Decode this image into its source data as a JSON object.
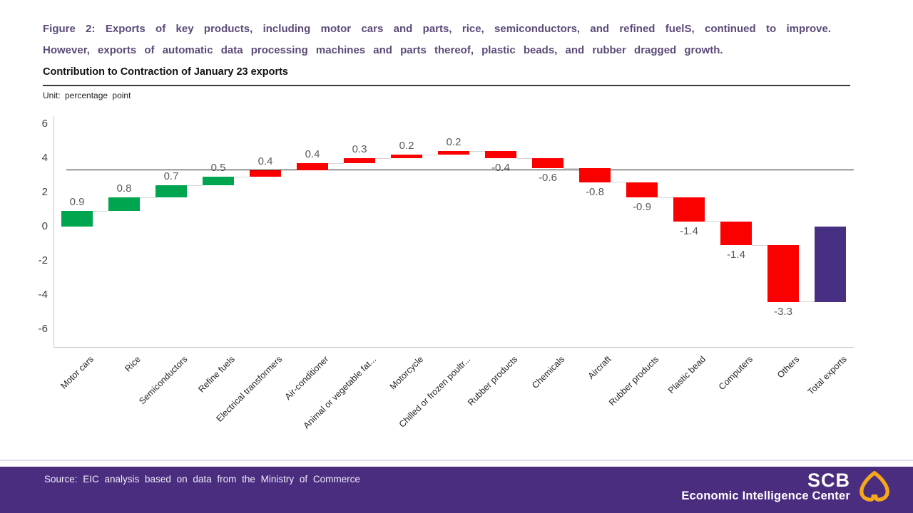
{
  "header": {
    "title_line1": "Figure 2: Exports of key products, including motor cars and parts, rice, semiconductors, and refined fuelS, continued to improve.",
    "title_line2": "However, exports of automatic data processing machines and parts thereof, plastic beads, and rubber dragged growth.",
    "subtitle": "Contribution to Contraction of January 23 exports",
    "unit_label": "Unit: percentage point"
  },
  "chart_data": {
    "type": "bar",
    "subtype": "waterfall",
    "title": "Contribution to Contraction of January 23 exports",
    "unit": "percentage point",
    "categories": [
      "Motor cars",
      "Rice",
      "Semiconductors",
      "Refine fuels",
      "Electrical transformers",
      "Air-conditioner",
      "Animal or vegetable fat...",
      "Motorcycle",
      "Chilled or frozen poultr...",
      "Rubber products",
      "Chemicals",
      "Aircraft",
      "Rubber products",
      "Plastic bead",
      "Computers",
      "Others",
      "Total exports"
    ],
    "values": [
      0.9,
      0.8,
      0.7,
      0.5,
      0.4,
      0.4,
      0.3,
      0.2,
      0.2,
      -0.4,
      -0.6,
      -0.8,
      -0.9,
      -1.4,
      -1.4,
      -3.3,
      -4.4
    ],
    "data_labels": [
      "0.9",
      "0.8",
      "0.7",
      "0.5",
      "0.4",
      "0.4",
      "0.3",
      "0.2",
      "0.2",
      "-0.4",
      "-0.6",
      "-0.8",
      "-0.9",
      "-1.4",
      "-1.4",
      "-3.3",
      ""
    ],
    "bar_colors": [
      "#00A550",
      "#00A550",
      "#00A550",
      "#00A550",
      "#FB0000",
      "#FB0000",
      "#FB0000",
      "#FB0000",
      "#FB0000",
      "#FB0000",
      "#FB0000",
      "#FB0000",
      "#FB0000",
      "#FB0000",
      "#FB0000",
      "#FB0000",
      "#473084"
    ],
    "total_last": true,
    "y_ticks": [
      6,
      4,
      2,
      0,
      -2,
      -4,
      -6
    ],
    "ylim": [
      -7,
      6.5
    ],
    "reference_line": 3.3,
    "grid": false,
    "legend": null,
    "xlabel": "",
    "ylabel": "percentage point"
  },
  "footer": {
    "source": "Source: EIC analysis based on data from the Ministry of Commerce",
    "logo_title": "SCB",
    "logo_subtitle": "Economic Intelligence Center"
  },
  "colors": {
    "title_purple": "#5C4A78",
    "positive_green": "#00A550",
    "negative_red": "#FB0000",
    "total_purple": "#473084",
    "footer_purple": "#4B2D80",
    "logo_gold": "#F6A81C",
    "value_label_gray": "#595959"
  }
}
